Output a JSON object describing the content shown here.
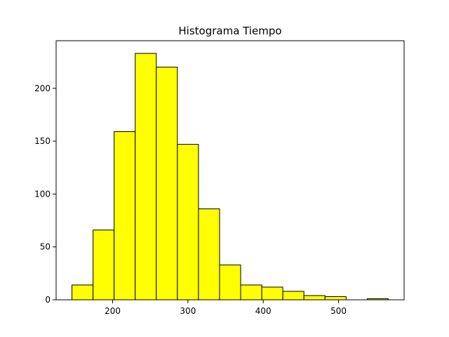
{
  "chart_data": {
    "type": "bar",
    "title": "Histograma Tiempo",
    "xlabel": "",
    "ylabel": "",
    "bins": [
      {
        "x0": 146,
        "x1": 174,
        "count": 14
      },
      {
        "x0": 174,
        "x1": 202,
        "count": 66
      },
      {
        "x0": 202,
        "x1": 230,
        "count": 159
      },
      {
        "x0": 230,
        "x1": 258,
        "count": 233
      },
      {
        "x0": 258,
        "x1": 286,
        "count": 220
      },
      {
        "x0": 286,
        "x1": 314,
        "count": 147
      },
      {
        "x0": 314,
        "x1": 342,
        "count": 86
      },
      {
        "x0": 342,
        "x1": 370,
        "count": 33
      },
      {
        "x0": 370,
        "x1": 398,
        "count": 14
      },
      {
        "x0": 398,
        "x1": 426,
        "count": 12
      },
      {
        "x0": 426,
        "x1": 454,
        "count": 8
      },
      {
        "x0": 454,
        "x1": 482,
        "count": 4
      },
      {
        "x0": 482,
        "x1": 510,
        "count": 3
      },
      {
        "x0": 510,
        "x1": 538,
        "count": 0
      },
      {
        "x0": 538,
        "x1": 566,
        "count": 1
      }
    ],
    "xlim": [
      125,
      587
    ],
    "ylim": [
      0,
      245
    ],
    "xticks": [
      200,
      300,
      400,
      500
    ],
    "yticks": [
      0,
      50,
      100,
      150,
      200
    ],
    "grid": false,
    "bar_color": "#ffff00",
    "edge_color": "#000000"
  }
}
